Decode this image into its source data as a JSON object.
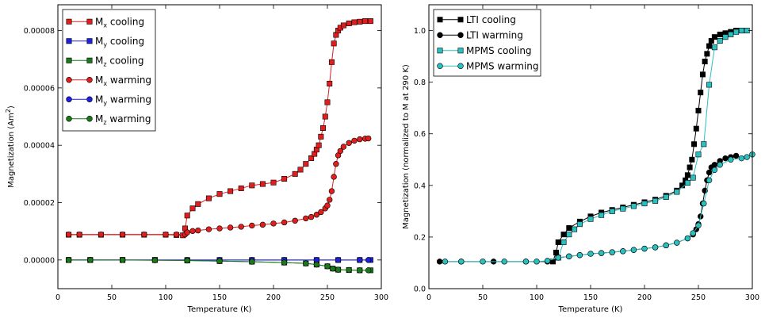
{
  "chart_data": [
    {
      "type": "line",
      "xlabel": "Temperature (K)",
      "ylabel": "Magnetization (Am",
      "ylabel_sup": "2",
      "ylabel_close": ")",
      "xlim": [
        0,
        300
      ],
      "ylim": [
        -1e-05,
        8.9e-05
      ],
      "xticks": [
        0,
        50,
        100,
        150,
        200,
        250,
        300
      ],
      "yticks": [
        0.0,
        2e-05,
        4e-05,
        6e-05,
        8e-05
      ],
      "ytick_labels": [
        "0.00000",
        "0.00002",
        "0.00004",
        "0.00006",
        "0.00008"
      ],
      "legend_position": "upper-left",
      "series": [
        {
          "name": "M",
          "sub": "x",
          "suffix": " cooling",
          "color": "#e01e1e",
          "marker": "square",
          "x": [
            10,
            20,
            40,
            60,
            80,
            100,
            110,
            116,
            118,
            120,
            125,
            130,
            140,
            150,
            160,
            170,
            180,
            190,
            200,
            210,
            220,
            225,
            230,
            235,
            238,
            240,
            242,
            244,
            246,
            248,
            250,
            252,
            254,
            256,
            258,
            260,
            262,
            265,
            270,
            275,
            280,
            285,
            290
          ],
          "y": [
            8.8e-06,
            8.8e-06,
            8.8e-06,
            8.8e-06,
            8.8e-06,
            8.8e-06,
            8.7e-06,
            8.6e-06,
            1.1e-05,
            1.55e-05,
            1.8e-05,
            1.95e-05,
            2.15e-05,
            2.3e-05,
            2.4e-05,
            2.5e-05,
            2.6e-05,
            2.65e-05,
            2.7e-05,
            2.83e-05,
            3e-05,
            3.15e-05,
            3.35e-05,
            3.55e-05,
            3.7e-05,
            3.85e-05,
            4e-05,
            4.3e-05,
            4.6e-05,
            5e-05,
            5.5e-05,
            6.15e-05,
            6.9e-05,
            7.55e-05,
            7.85e-05,
            8e-05,
            8.1e-05,
            8.18e-05,
            8.25e-05,
            8.29e-05,
            8.31e-05,
            8.33e-05,
            8.33e-05
          ]
        },
        {
          "name": "M",
          "sub": "y",
          "suffix": " cooling",
          "color": "#1f1fe0",
          "marker": "square",
          "x": [
            10,
            30,
            60,
            90,
            120,
            150,
            180,
            210,
            240,
            260,
            280,
            290
          ],
          "y": [
            0.0,
            0.0,
            0.0,
            0.0,
            0.0,
            0.0,
            0.0,
            0.0,
            0.0,
            0.0,
            0.0,
            0.0
          ]
        },
        {
          "name": "M",
          "sub": "z",
          "suffix": " cooling",
          "color": "#1a7a1a",
          "marker": "square",
          "x": [
            10,
            30,
            60,
            90,
            120,
            150,
            180,
            210,
            230,
            240,
            250,
            255,
            260,
            270,
            280,
            290
          ],
          "y": [
            0.0,
            0.0,
            0.0,
            0.0,
            -2e-07,
            -4e-07,
            -6e-07,
            -9e-07,
            -1.2e-06,
            -1.6e-06,
            -2.2e-06,
            -3e-06,
            -3.4e-06,
            -3.5e-06,
            -3.6e-06,
            -3.6e-06
          ]
        },
        {
          "name": "M",
          "sub": "x",
          "suffix": " warming",
          "color": "#e01e1e",
          "marker": "circle",
          "x": [
            10,
            20,
            40,
            60,
            80,
            100,
            110,
            118,
            120,
            125,
            130,
            140,
            150,
            160,
            170,
            180,
            190,
            200,
            210,
            220,
            230,
            235,
            240,
            244,
            248,
            250,
            252,
            254,
            256,
            258,
            260,
            262,
            265,
            270,
            275,
            280,
            285,
            288
          ],
          "y": [
            8.9e-06,
            8.9e-06,
            8.9e-06,
            8.9e-06,
            8.9e-06,
            8.9e-06,
            8.9e-06,
            8.9e-06,
            9.6e-06,
            1.01e-05,
            1.03e-05,
            1.07e-05,
            1.1e-05,
            1.13e-05,
            1.16e-05,
            1.2e-05,
            1.23e-05,
            1.27e-05,
            1.31e-05,
            1.37e-05,
            1.45e-05,
            1.5e-05,
            1.58e-05,
            1.67e-05,
            1.8e-05,
            1.9e-05,
            2.1e-05,
            2.4e-05,
            2.9e-05,
            3.35e-05,
            3.65e-05,
            3.8e-05,
            3.95e-05,
            4.08e-05,
            4.16e-05,
            4.21e-05,
            4.23e-05,
            4.24e-05
          ]
        },
        {
          "name": "M",
          "sub": "y",
          "suffix": " warming",
          "color": "#1f1fe0",
          "marker": "circle",
          "x": [
            10,
            30,
            60,
            90,
            120,
            150,
            180,
            210,
            240,
            260,
            280,
            288
          ],
          "y": [
            0.0,
            0.0,
            0.0,
            0.0,
            0.0,
            0.0,
            0.0,
            0.0,
            0.0,
            0.0,
            0.0,
            0.0
          ]
        },
        {
          "name": "M",
          "sub": "z",
          "suffix": " warming",
          "color": "#1a7a1a",
          "marker": "circle",
          "x": [
            10,
            30,
            60,
            90,
            120,
            150,
            180,
            210,
            230,
            240,
            250,
            255,
            260,
            270,
            280,
            288
          ],
          "y": [
            0.0,
            0.0,
            0.0,
            -1e-07,
            -2e-07,
            -4e-07,
            -6e-07,
            -9e-07,
            -1.2e-06,
            -1.6e-06,
            -2.2e-06,
            -3e-06,
            -3.4e-06,
            -3.5e-06,
            -3.6e-06,
            -3.6e-06
          ]
        }
      ]
    },
    {
      "type": "line",
      "xlabel": "Temperature (K)",
      "ylabel": "Magnetization (normalized to M at 290 K)",
      "xlim": [
        0,
        300
      ],
      "ylim": [
        0.0,
        1.1
      ],
      "xticks": [
        0,
        50,
        100,
        150,
        200,
        250,
        300
      ],
      "yticks": [
        0.0,
        0.2,
        0.4,
        0.6,
        0.8,
        1.0
      ],
      "ytick_labels": [
        "0.0",
        "0.2",
        "0.4",
        "0.6",
        "0.8",
        "1.0"
      ],
      "legend_position": "upper-left",
      "series": [
        {
          "name": "LTI cooling",
          "color": "#000000",
          "marker": "square",
          "x": [
            115,
            118,
            120,
            125,
            130,
            140,
            150,
            160,
            170,
            180,
            190,
            200,
            210,
            220,
            230,
            235,
            238,
            240,
            242,
            244,
            246,
            248,
            250,
            252,
            254,
            256,
            258,
            260,
            262,
            265,
            270,
            275,
            280,
            285,
            290
          ],
          "y": [
            0.105,
            0.14,
            0.18,
            0.21,
            0.235,
            0.26,
            0.28,
            0.295,
            0.305,
            0.315,
            0.325,
            0.335,
            0.345,
            0.36,
            0.38,
            0.4,
            0.42,
            0.44,
            0.47,
            0.5,
            0.56,
            0.62,
            0.69,
            0.76,
            0.83,
            0.88,
            0.91,
            0.94,
            0.96,
            0.975,
            0.985,
            0.99,
            0.995,
            1.0,
            1.0
          ]
        },
        {
          "name": "LTI warming",
          "color": "#000000",
          "marker": "circle",
          "x": [
            10,
            30,
            60,
            90,
            110,
            120,
            130,
            140,
            150,
            160,
            170,
            180,
            190,
            200,
            210,
            220,
            230,
            240,
            245,
            248,
            250,
            252,
            254,
            256,
            258,
            260,
            262,
            265,
            270,
            275,
            280,
            285
          ],
          "y": [
            0.105,
            0.105,
            0.105,
            0.105,
            0.105,
            0.12,
            0.125,
            0.13,
            0.135,
            0.138,
            0.141,
            0.145,
            0.15,
            0.155,
            0.16,
            0.168,
            0.178,
            0.195,
            0.21,
            0.23,
            0.25,
            0.28,
            0.33,
            0.38,
            0.42,
            0.45,
            0.47,
            0.48,
            0.495,
            0.505,
            0.51,
            0.515
          ]
        },
        {
          "name": "MPMS cooling",
          "color": "#2bc0c0",
          "marker": "square",
          "x": [
            120,
            125,
            130,
            135,
            140,
            150,
            160,
            170,
            180,
            190,
            200,
            210,
            220,
            230,
            240,
            245,
            250,
            255,
            260,
            265,
            270,
            275,
            280,
            285,
            290,
            295
          ],
          "y": [
            0.12,
            0.18,
            0.21,
            0.23,
            0.25,
            0.27,
            0.285,
            0.3,
            0.31,
            0.32,
            0.33,
            0.34,
            0.355,
            0.375,
            0.41,
            0.43,
            0.52,
            0.56,
            0.79,
            0.935,
            0.96,
            0.975,
            0.985,
            0.995,
            1.0,
            1.0
          ]
        },
        {
          "name": "MPMS warming",
          "color": "#2bc0c0",
          "marker": "circle",
          "x": [
            15,
            30,
            50,
            70,
            90,
            100,
            110,
            120,
            130,
            140,
            150,
            160,
            170,
            180,
            190,
            200,
            210,
            220,
            230,
            240,
            245,
            250,
            255,
            260,
            265,
            270,
            280,
            290,
            295,
            300
          ],
          "y": [
            0.105,
            0.105,
            0.105,
            0.105,
            0.105,
            0.105,
            0.108,
            0.12,
            0.125,
            0.13,
            0.135,
            0.138,
            0.141,
            0.145,
            0.15,
            0.155,
            0.16,
            0.168,
            0.178,
            0.195,
            0.215,
            0.245,
            0.33,
            0.42,
            0.46,
            0.48,
            0.5,
            0.505,
            0.51,
            0.52
          ]
        }
      ]
    }
  ]
}
